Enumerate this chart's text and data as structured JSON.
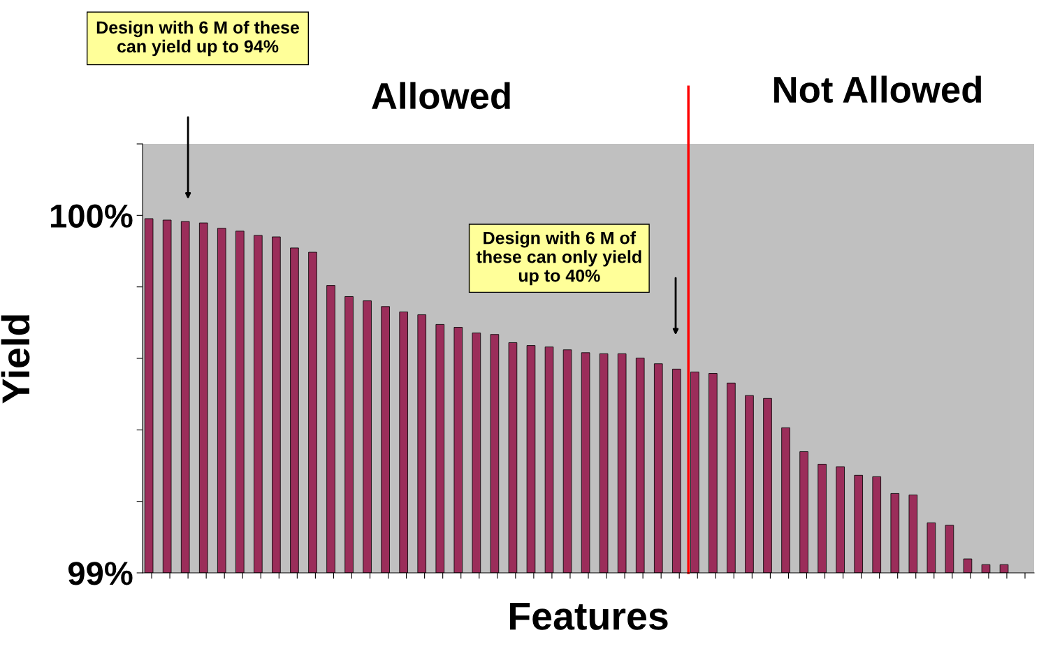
{
  "chart_data": {
    "type": "bar",
    "categories": [
      null,
      null,
      null,
      null,
      null,
      null,
      null,
      null,
      null,
      null,
      null,
      null,
      null,
      null,
      null,
      null,
      null,
      null,
      null,
      null,
      null,
      null,
      null,
      null,
      null,
      null,
      null,
      null,
      null,
      null,
      null,
      null,
      null,
      null,
      null,
      null,
      null,
      null,
      null,
      null,
      null,
      null,
      null,
      null,
      null,
      null,
      null,
      null,
      null
    ],
    "values": [
      99.991,
      99.987,
      99.983,
      99.979,
      99.964,
      99.956,
      99.944,
      99.94,
      99.909,
      99.897,
      99.804,
      99.773,
      99.761,
      99.745,
      99.73,
      99.722,
      99.695,
      99.687,
      99.671,
      99.667,
      99.644,
      99.636,
      99.632,
      99.624,
      99.616,
      99.613,
      99.613,
      99.601,
      99.585,
      99.57,
      99.562,
      99.558,
      99.531,
      99.496,
      99.488,
      99.406,
      99.339,
      99.304,
      99.297,
      99.273,
      99.269,
      99.222,
      99.218,
      99.14,
      99.133,
      99.039,
      99.023,
      99.023,
      null
    ],
    "color": "#9b2d5a",
    "ylim": [
      99,
      100.2
    ],
    "yticks": [
      {
        "value": 99,
        "label": "99%"
      },
      {
        "value": 99.2,
        "label": null
      },
      {
        "value": 99.4,
        "label": null
      },
      {
        "value": 99.6,
        "label": null
      },
      {
        "value": 99.8,
        "label": null
      },
      {
        "value": 100,
        "label": "100%"
      },
      {
        "value": 100.2,
        "label": null
      }
    ],
    "xlabel": "Features",
    "ylabel": "Yield",
    "grid": false,
    "annotations": [
      "Design with 6 M of these\ncan yield up to 94%",
      "Design with 6 M of\nthese can only yield\nup to 40%",
      "Allowed",
      "Not Allowed"
    ]
  }
}
